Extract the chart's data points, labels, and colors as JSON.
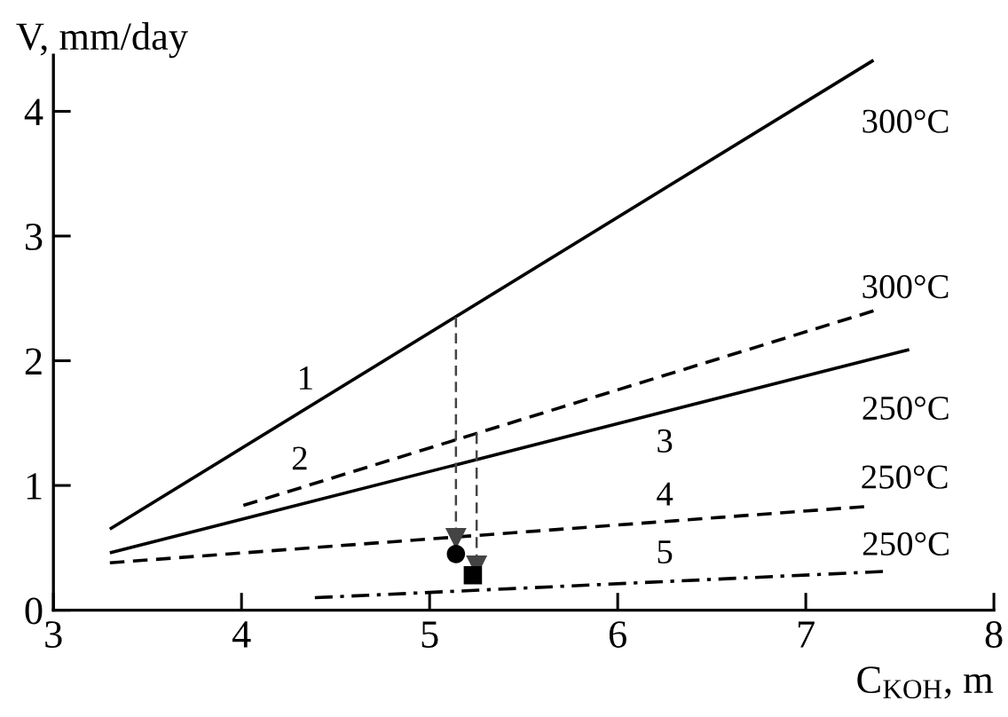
{
  "chart_data": {
    "type": "line",
    "xlabel": "C$_{KOH}$, m",
    "ylabel": "V, mm/day",
    "xlim": [
      3,
      8
    ],
    "ylim": [
      0,
      4.45
    ],
    "xticks": [
      3,
      4,
      5,
      6,
      7,
      8
    ],
    "yticks": [
      0,
      1,
      2,
      3,
      4
    ],
    "series": [
      {
        "color": "#000000",
        "line_style": "solid",
        "x": [
          3.3,
          7.36
        ],
        "values": [
          0.65,
          4.41
        ]
      },
      {
        "color": "#000000",
        "line_style": "dashed",
        "x": [
          4.01,
          7.36
        ],
        "values": [
          0.84,
          2.4
        ]
      },
      {
        "color": "#000000",
        "line_style": "solid",
        "x": [
          3.3,
          7.55
        ],
        "values": [
          0.46,
          2.09
        ]
      },
      {
        "color": "#000000",
        "line_style": "dashed",
        "x": [
          3.3,
          7.31
        ],
        "values": [
          0.38,
          0.83
        ]
      },
      {
        "color": "#000000",
        "line_style": "dashdot",
        "x": [
          4.39,
          7.41
        ],
        "values": [
          0.1,
          0.31
        ]
      },
      {
        "type": "line",
        "color": "#444444",
        "line_style": "dashed",
        "marker": "triangle",
        "x": [
          5.14,
          5.14
        ],
        "values": [
          2.35,
          0.58
        ]
      },
      {
        "type": "line",
        "color": "#444444",
        "line_style": "dashed",
        "marker": "triangle",
        "x": [
          5.25,
          5.25
        ],
        "values": [
          1.42,
          0.36
        ]
      },
      {
        "type": "scatter",
        "color": "#000000",
        "marker": "circle",
        "x": [
          5.14
        ],
        "values": [
          0.45
        ]
      },
      {
        "type": "scatter",
        "color": "#000000",
        "marker": "square",
        "x": [
          5.23
        ],
        "values": [
          0.28
        ]
      }
    ],
    "annotations": [
      {
        "text": "1",
        "x": 4.34,
        "y": 1.61
      },
      {
        "text": "2",
        "x": 4.31,
        "y": 0.98
      },
      {
        "text": "3",
        "x": 6.25,
        "y": 1.59
      },
      {
        "text": "4",
        "x": 6.25,
        "y": 0.71
      },
      {
        "text": "5",
        "x": 6.25,
        "y": 0.23
      },
      {
        "text": "300°C",
        "x": 7.36,
        "y": 4.41
      },
      {
        "text": "300°C",
        "x": 7.36,
        "y": 2.4
      },
      {
        "text": "250°C",
        "x": 7.55,
        "y": 2.09
      },
      {
        "text": "250°C",
        "x": 7.31,
        "y": 0.83
      },
      {
        "text": "250°C",
        "x": 7.41,
        "y": 0.31
      }
    ]
  }
}
